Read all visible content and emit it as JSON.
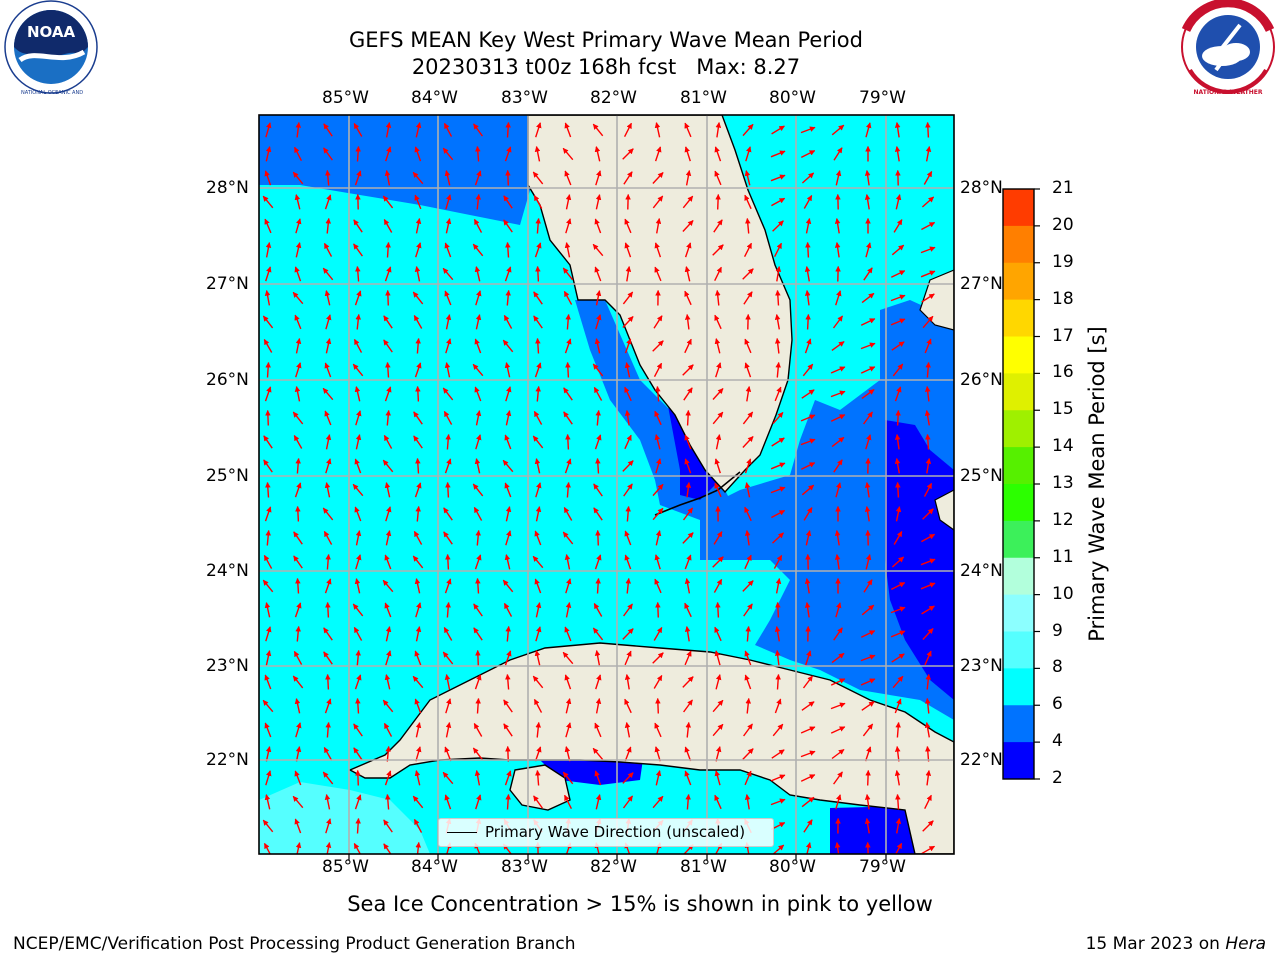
{
  "title": {
    "line1": "GEFS MEAN Key West Primary Wave Mean Period",
    "line2": "20230313 t00z 168h fcst   Max: 8.27"
  },
  "logos": {
    "left": "NOAA",
    "left_ring_text": "NATIONAL OCEANIC AND ATMOSPHERIC ADMINISTRATION · U.S. DEPARTMENT OF COMMERCE",
    "right_ring_text": "NATIONAL WEATHER SERVICE"
  },
  "axes": {
    "lon_labels": [
      "85°W",
      "84°W",
      "83°W",
      "82°W",
      "81°W",
      "80°W",
      "79°W"
    ],
    "lat_labels": [
      "28°N",
      "27°N",
      "26°N",
      "25°N",
      "24°N",
      "23°N",
      "22°N"
    ]
  },
  "legend": {
    "line_label": "Primary Wave Direction (unscaled)"
  },
  "colorbar": {
    "label": "Primary Wave Mean Period [s]",
    "ticks": [
      "2",
      "4",
      "6",
      "8",
      "9",
      "10",
      "11",
      "12",
      "13",
      "14",
      "15",
      "16",
      "17",
      "18",
      "19",
      "20",
      "21"
    ],
    "colors": [
      "#0000ff",
      "#0073ff",
      "#00ffff",
      "#55ffff",
      "#8cffff",
      "#b2ffdc",
      "#3cf05a",
      "#2cff00",
      "#56f000",
      "#9ff000",
      "#dff000",
      "#ffff00",
      "#ffd700",
      "#ffa500",
      "#ff7f00",
      "#ff3c00",
      "#ff0000"
    ]
  },
  "colors": {
    "land": "#eeecdd",
    "grid": "#b0b0b0",
    "arrows": "#ff0000"
  },
  "notes": {
    "sea_ice": "Sea Ice Concentration > 15% is shown in pink to yellow"
  },
  "footer": {
    "left": "NCEP/EMC/Verification Post Processing Product Generation Branch",
    "right_prefix": "15 Mar 2023 on ",
    "right_host": "Hera"
  }
}
